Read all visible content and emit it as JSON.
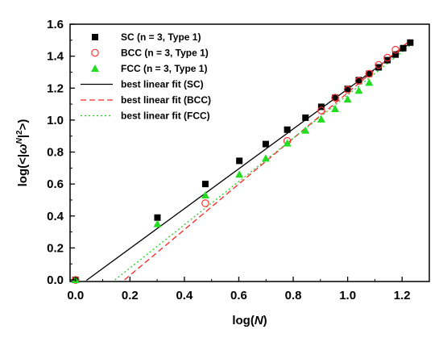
{
  "chart_data": {
    "type": "scatter",
    "x_label": {
      "prefix": "log(",
      "var": "N",
      "suffix": ")"
    },
    "y_label": {
      "prefix": "log(<|",
      "var": "ω",
      "sup": "N",
      "mid": "|",
      "sup2": "2",
      "suffix": ">)"
    },
    "xlim": [
      -0.02,
      1.3
    ],
    "ylim": [
      -0.01,
      1.6
    ],
    "x_ticks": [
      0.0,
      0.2,
      0.4,
      0.6,
      0.8,
      1.0,
      1.2
    ],
    "x_tick_labels": [
      "0.0",
      "0.2",
      "0.4",
      "0.6",
      "0.8",
      "1.0",
      "1.2"
    ],
    "y_ticks": [
      0.0,
      0.2,
      0.4,
      0.6,
      0.8,
      1.0,
      1.2,
      1.4,
      1.6
    ],
    "y_tick_labels": [
      "0.0",
      "0.2",
      "0.4",
      "0.6",
      "0.8",
      "1.0",
      "1.2",
      "1.4",
      "1.6"
    ],
    "grid": false,
    "legend_position": "top-left",
    "series": [
      {
        "name": "SC   (n = 3, Type 1)",
        "marker": "square",
        "color": "#000000",
        "x": [
          0.0,
          0.301,
          0.477,
          0.602,
          0.699,
          0.778,
          0.845,
          0.903,
          0.954,
          1.0,
          1.041,
          1.079,
          1.114,
          1.146,
          1.176,
          1.204,
          1.23
        ],
        "y": [
          0.0,
          0.39,
          0.6,
          0.745,
          0.85,
          0.94,
          1.015,
          1.083,
          1.14,
          1.195,
          1.25,
          1.29,
          1.33,
          1.375,
          1.41,
          1.45,
          1.485
        ]
      },
      {
        "name": "BCC (n = 3, Type 1)",
        "marker": "open-circle",
        "color": "#ff3333",
        "x": [
          0.0,
          0.477,
          0.778,
          0.903,
          0.954,
          1.0,
          1.041,
          1.079,
          1.114,
          1.146,
          1.176
        ],
        "y": [
          0.0,
          0.48,
          0.87,
          1.06,
          1.14,
          1.19,
          1.245,
          1.29,
          1.345,
          1.39,
          1.44
        ]
      },
      {
        "name": "FCC (n = 3, Type 1)",
        "marker": "triangle",
        "color": "#22dd22",
        "x": [
          0.0,
          0.301,
          0.477,
          0.602,
          0.699,
          0.778,
          0.845,
          0.903,
          0.954,
          1.0,
          1.041,
          1.079
        ],
        "y": [
          0.0,
          0.35,
          0.53,
          0.66,
          0.76,
          0.855,
          0.935,
          1.005,
          1.07,
          1.13,
          1.185,
          1.235
        ]
      }
    ],
    "fits": [
      {
        "name": "best linear fit (SC)",
        "color": "#000000",
        "dash": "solid",
        "slope": 1.2475,
        "intercept": -0.053,
        "x_start": 0.04,
        "x_end": 1.235
      },
      {
        "name": "best linear fit (BCC)",
        "color": "#ff2222",
        "dash": "dashed",
        "slope": 1.4286,
        "intercept": -0.257,
        "x_start": 0.18,
        "x_end": 1.225
      },
      {
        "name": "best linear fit (FCC)",
        "color": "#22cc22",
        "dash": "dotted",
        "slope": 1.3525,
        "intercept": -0.196,
        "x_start": 0.145,
        "x_end": 1.23
      }
    ]
  }
}
